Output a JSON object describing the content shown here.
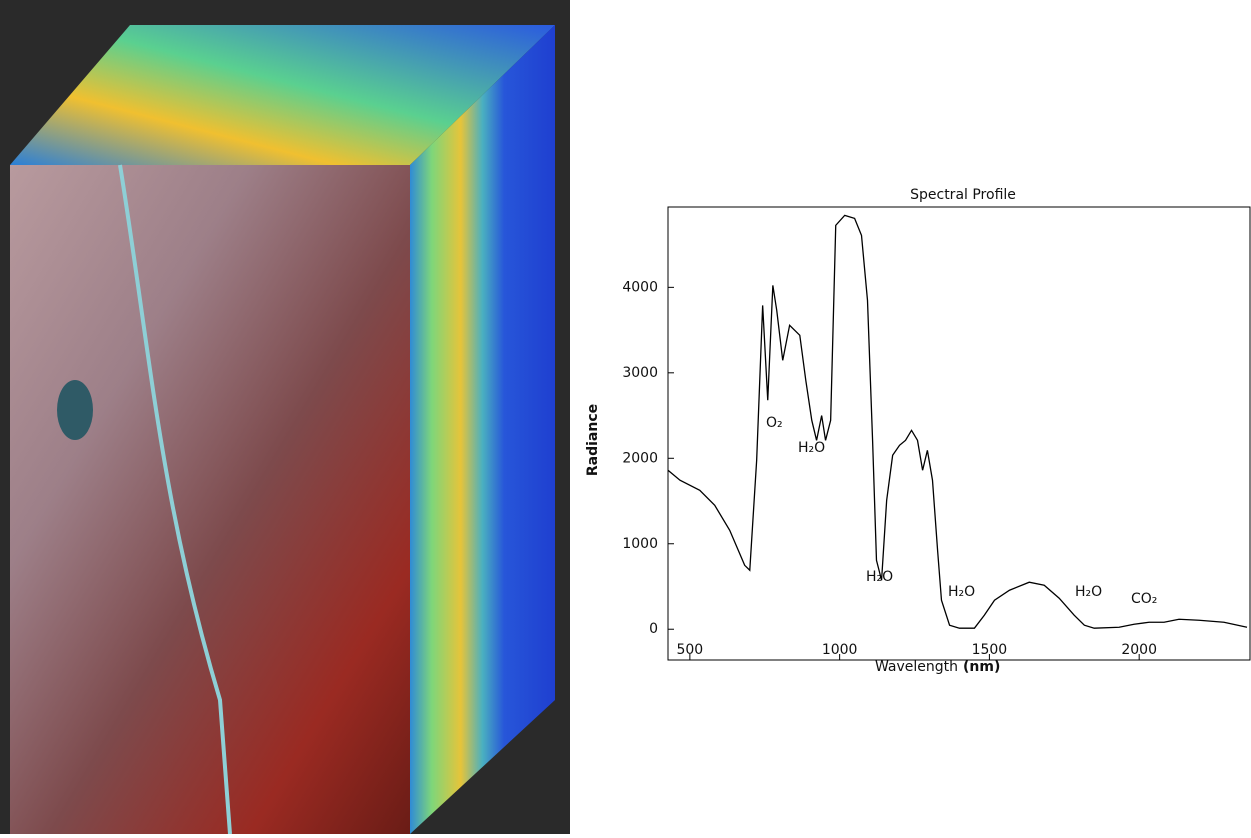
{
  "chart_data": {
    "type": "line",
    "title": "Spectral Profile",
    "xlabel": "Wavelength",
    "xlabel_unit": "(nm)",
    "ylabel": "Radiance",
    "x": [
      427,
      467,
      533,
      583,
      633,
      683,
      700,
      723,
      743,
      760,
      777,
      790,
      810,
      833,
      867,
      887,
      907,
      923,
      940,
      953,
      970,
      987,
      1017,
      1050,
      1073,
      1093,
      1110,
      1123,
      1140,
      1157,
      1177,
      1200,
      1220,
      1240,
      1260,
      1277,
      1293,
      1310,
      1327,
      1340,
      1367,
      1400,
      1450,
      1483,
      1517,
      1567,
      1633,
      1683,
      1733,
      1783,
      1817,
      1850,
      1933,
      1983,
      2033,
      2083,
      2133,
      2200,
      2283,
      2360
    ],
    "values": [
      1860,
      1743,
      1626,
      1450,
      1158,
      748,
      690,
      1977,
      3789,
      2680,
      4023,
      3731,
      3146,
      3556,
      3439,
      2912,
      2444,
      2210,
      2500,
      2210,
      2444,
      4725,
      4842,
      4807,
      4608,
      3848,
      2210,
      807,
      573,
      1509,
      2035,
      2152,
      2210,
      2327,
      2210,
      1860,
      2093,
      1743,
      924,
      339,
      47,
      12,
      12,
      164,
      339,
      456,
      550,
      515,
      363,
      164,
      47,
      12,
      23,
      58,
      82,
      82,
      117,
      105,
      82,
      23
    ],
    "color": "#000000",
    "xlim": [
      427,
      2370
    ],
    "ylim": [
      -360,
      4940
    ],
    "xticks": [
      500,
      1000,
      1500,
      2000
    ],
    "yticks": [
      0,
      1000,
      2000,
      3000,
      4000
    ],
    "annotations": [
      "O₂",
      "H₂O",
      "H₂O",
      "H₂O",
      "H₂O",
      "CO₂"
    ]
  }
}
